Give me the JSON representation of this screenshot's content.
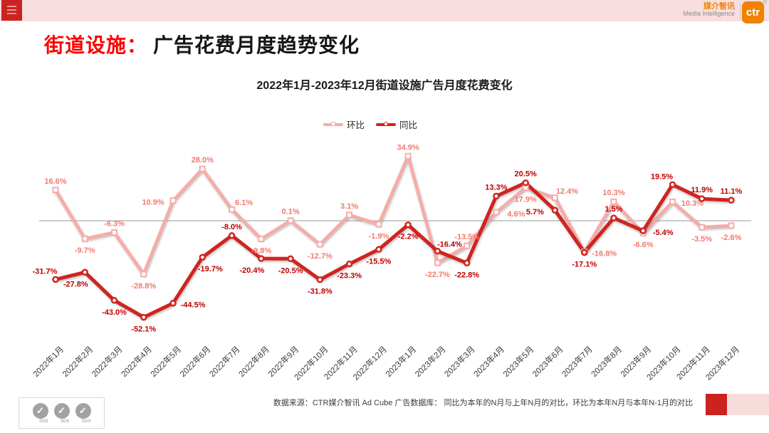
{
  "header": {
    "brand_cn": "媒介智讯",
    "brand_en": "Media Intelligence",
    "logo_text": "ctr",
    "registered_mark": "®"
  },
  "page_title": {
    "highlight": "街道设施：",
    "rest": "广告花费月度趋势变化"
  },
  "chart_data": {
    "type": "line",
    "title": "2022年1月-2023年12月街道设施广告月度花费变化",
    "categories": [
      "2022年1月",
      "2022年2月",
      "2022年3月",
      "2022年4月",
      "2022年5月",
      "2022年6月",
      "2022年7月",
      "2022年8月",
      "2022年9月",
      "2022年10月",
      "2022年11月",
      "2022年12月",
      "2023年1月",
      "2023年2月",
      "2023年3月",
      "2023年4月",
      "2023年5月",
      "2023年6月",
      "2023年7月",
      "2023年8月",
      "2023年9月",
      "2023年10月",
      "2023年11月",
      "2023年12月"
    ],
    "unit": "%",
    "ylim": [
      -60,
      45
    ],
    "zero_line": true,
    "legend_position": "top",
    "grid": "single-zero-line",
    "series": [
      {
        "name": "环比",
        "marker": "square",
        "color": "#f7aba8",
        "label_color": "#f2796f",
        "values": [
          16.6,
          -9.7,
          -6.3,
          -28.8,
          10.9,
          28.0,
          6.1,
          -9.8,
          0.1,
          -12.7,
          3.1,
          -1.9,
          34.9,
          -22.7,
          -13.5,
          4.6,
          17.9,
          12.4,
          -16.8,
          10.3,
          -6.6,
          10.3,
          -3.5,
          -2.6
        ],
        "label_pos": [
          "above",
          "below",
          "above",
          "below",
          "left",
          "above",
          "above-right",
          "below",
          "above",
          "below",
          "above",
          "below",
          "above",
          "below",
          "above",
          "right",
          "below",
          "above-right",
          "right",
          "above",
          "below",
          "right",
          "below",
          "below"
        ]
      },
      {
        "name": "同比",
        "marker": "circle",
        "color": "#d0241f",
        "label_color": "#c00000",
        "values": [
          -31.7,
          -27.8,
          -43.0,
          -52.1,
          -44.5,
          -19.7,
          -8.0,
          -20.4,
          -20.5,
          -31.8,
          -23.3,
          -15.5,
          -2.2,
          -16.4,
          -22.8,
          13.3,
          20.5,
          5.7,
          -17.1,
          1.5,
          -5.4,
          19.5,
          11.9,
          11.1
        ],
        "label_pos": [
          "above-left",
          "below-left",
          "below",
          "below",
          "right",
          "below-right",
          "above",
          "below-left",
          "below",
          "below",
          "below",
          "below",
          "below",
          "above-right",
          "below",
          "above",
          "above",
          "left",
          "below",
          "above",
          "right",
          "above-left",
          "above",
          "above"
        ]
      }
    ]
  },
  "footer": {
    "source_text": "数据来源：CTR媒介智讯 Ad Cube 广告数据库： 同比为本年的N月与上年N月的对比，环比为本年N月与本年N-1月的对比",
    "sgs_label": "SGS",
    "sgs_check": "✓",
    "accent_dark": "#cc2220",
    "accent_light": "#f8dcdc"
  }
}
